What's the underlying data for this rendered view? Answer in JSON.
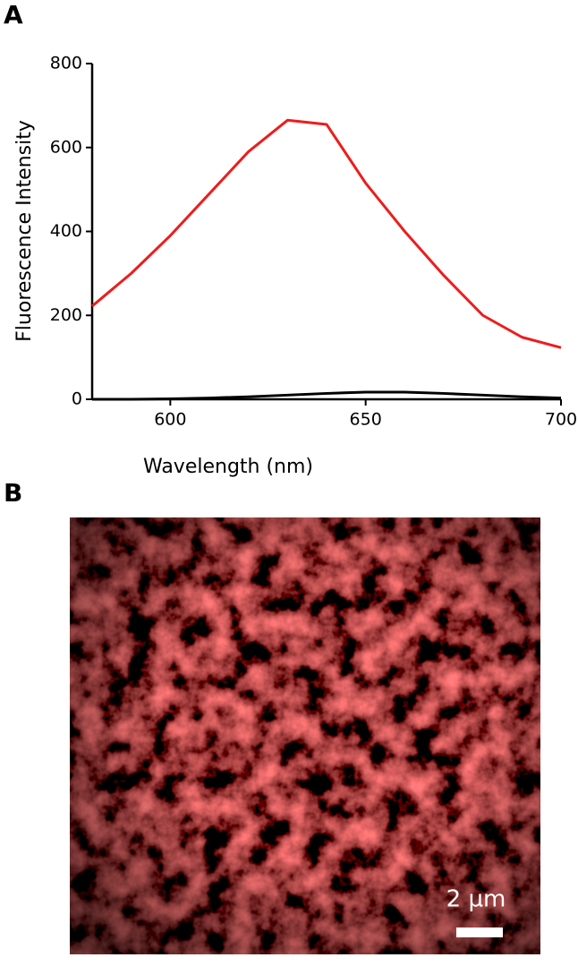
{
  "panel_labels": [
    "A",
    "B"
  ],
  "chart_data": {
    "type": "line",
    "x": [
      580,
      590,
      600,
      610,
      620,
      630,
      640,
      650,
      660,
      670,
      680,
      690,
      700
    ],
    "series": [
      {
        "color": "#ee1c1c",
        "values": [
          222,
          300,
          390,
          490,
          590,
          665,
          655,
          515,
          400,
          295,
          200,
          148,
          123
        ]
      },
      {
        "color": "#000000",
        "values": [
          0,
          0,
          1,
          3,
          6,
          10,
          14,
          17,
          17,
          14,
          10,
          6,
          3
        ]
      }
    ],
    "xlabel": "Wavelength (nm)",
    "ylabel": "Fluorescence Intensity",
    "xlim": [
      580,
      700
    ],
    "xticks": [
      600,
      650,
      700
    ],
    "ylim": [
      0,
      800
    ],
    "yticks": [
      0,
      200,
      400,
      600,
      800
    ]
  },
  "image": {
    "scale_bar_label": "2 µm"
  }
}
